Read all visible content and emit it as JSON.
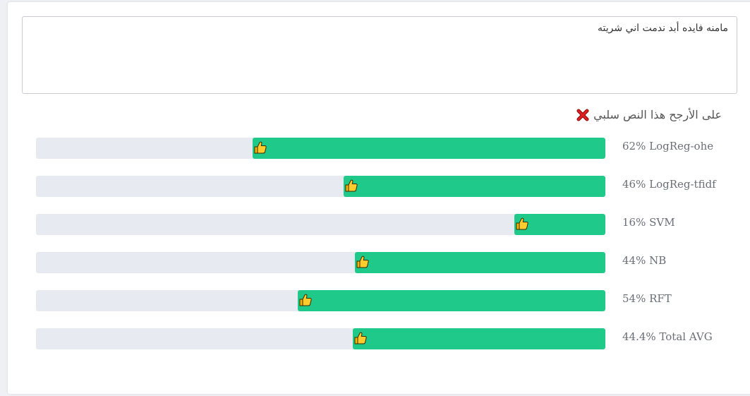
{
  "input": {
    "text": "مامنه فايده أبد ندمت اني شريته"
  },
  "verdict": {
    "text": "على الأرجح هذا النص سلبي",
    "icon": "cross-mark-icon",
    "icon_color": "#e02020"
  },
  "colors": {
    "fill": "#1fc98a",
    "track": "#e8eaf1"
  },
  "models": [
    {
      "label": "62% LogReg-ohe",
      "percent": 62,
      "icon": "thumbs-up-icon"
    },
    {
      "label": "46% LogReg-tfidf",
      "percent": 46,
      "icon": "thumbs-up-icon"
    },
    {
      "label": "16% SVM",
      "percent": 16,
      "icon": "thumbs-up-icon"
    },
    {
      "label": "44% NB",
      "percent": 44,
      "icon": "thumbs-up-icon"
    },
    {
      "label": "54% RFT",
      "percent": 54,
      "icon": "thumbs-up-icon"
    },
    {
      "label": "44.4% Total AVG",
      "percent": 44.4,
      "icon": "thumbs-up-icon"
    }
  ]
}
